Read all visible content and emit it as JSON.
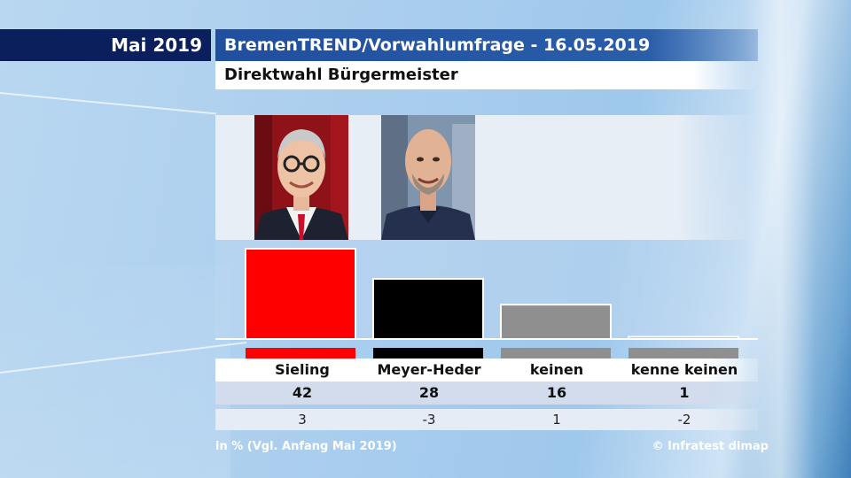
{
  "header": {
    "date": "Mai 2019",
    "title": "BremenTREND/Vorwahlumfrage - 16.05.2019",
    "subtitle": "Direktwahl Bürgermeister"
  },
  "colors": {
    "sieling": "#ff0000",
    "meyer_heder": "#000000",
    "keinen": "#8f8f8f",
    "kenne_keinen": "#8f8f8f"
  },
  "chart_data": {
    "type": "bar",
    "categories": [
      "Sieling",
      "Meyer-Heder",
      "keinen",
      "kenne keinen"
    ],
    "values": [
      42,
      28,
      16,
      1
    ],
    "change_labels": [
      "3",
      "-3",
      "1",
      "-2"
    ],
    "ylim": [
      0,
      42
    ]
  },
  "footer": {
    "note": "in % (Vgl. Anfang Mai 2019)",
    "credit": "© Infratest dimap"
  }
}
